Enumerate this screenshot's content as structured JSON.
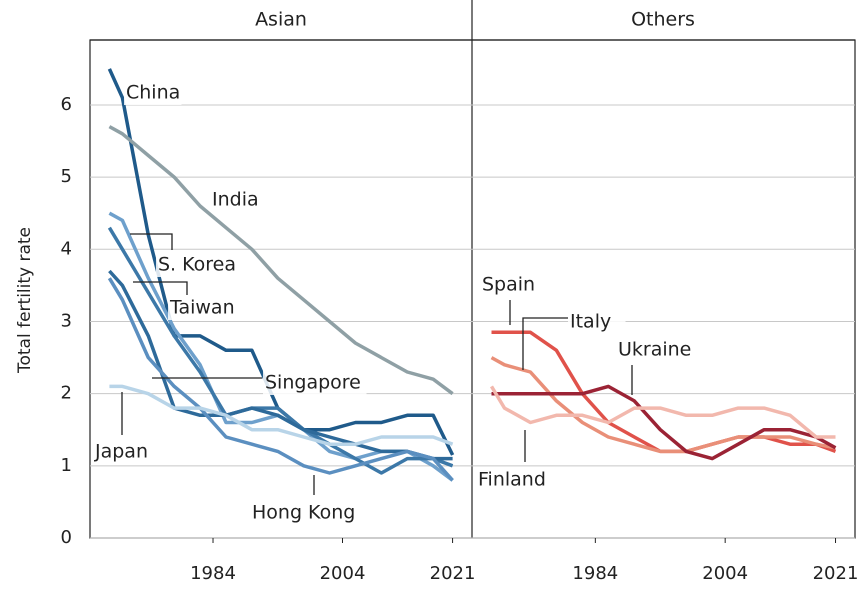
{
  "chart_data": [
    {
      "type": "line",
      "title": "Asian",
      "y_label": "Total fertility rate",
      "x": [
        1968,
        1970,
        1974,
        1978,
        1982,
        1986,
        1990,
        1994,
        1998,
        2002,
        2006,
        2010,
        2014,
        2018,
        2021
      ],
      "xlim": [
        1965,
        2024
      ],
      "ylim": [
        0,
        6.9
      ],
      "xticks": [
        1984,
        2004,
        2021
      ],
      "yticks": [
        0,
        1,
        2,
        3,
        4,
        5,
        6
      ],
      "grid": true,
      "series": [
        {
          "name": "China",
          "color": "#1f5a8a",
          "values": [
            6.5,
            6.1,
            4.2,
            2.8,
            2.8,
            2.6,
            2.6,
            1.8,
            1.5,
            1.5,
            1.6,
            1.6,
            1.7,
            1.7,
            1.15
          ]
        },
        {
          "name": "India",
          "color": "#8fa0a5",
          "values": [
            5.7,
            5.6,
            5.3,
            5.0,
            4.6,
            4.3,
            4.0,
            3.6,
            3.3,
            3.0,
            2.7,
            2.5,
            2.3,
            2.2,
            2.0
          ]
        },
        {
          "name": "S. Korea",
          "color": "#6ea0cc",
          "values": [
            4.5,
            4.4,
            3.6,
            2.9,
            2.4,
            1.6,
            1.6,
            1.7,
            1.5,
            1.2,
            1.1,
            1.2,
            1.2,
            1.0,
            0.8
          ]
        },
        {
          "name": "Taiwan",
          "color": "#3c78a8",
          "values": [
            4.3,
            4.0,
            3.4,
            2.8,
            2.3,
            1.7,
            1.8,
            1.8,
            1.5,
            1.3,
            1.1,
            0.9,
            1.1,
            1.1,
            1.0
          ]
        },
        {
          "name": "Singapore",
          "color": "#2e6a9a",
          "values": [
            3.7,
            3.5,
            2.8,
            1.8,
            1.7,
            1.7,
            1.8,
            1.7,
            1.5,
            1.4,
            1.3,
            1.2,
            1.2,
            1.1,
            1.1
          ]
        },
        {
          "name": "Hong Kong",
          "color": "#5b8fc0",
          "values": [
            3.6,
            3.3,
            2.5,
            2.1,
            1.8,
            1.4,
            1.3,
            1.2,
            1.0,
            0.9,
            1.0,
            1.1,
            1.2,
            1.1,
            0.8
          ]
        },
        {
          "name": "Japan",
          "color": "#b8d4e8",
          "values": [
            2.1,
            2.1,
            2.0,
            1.8,
            1.8,
            1.7,
            1.5,
            1.5,
            1.4,
            1.3,
            1.3,
            1.4,
            1.4,
            1.4,
            1.3
          ]
        }
      ]
    },
    {
      "type": "line",
      "title": "Others",
      "x": [
        1968,
        1970,
        1974,
        1978,
        1982,
        1986,
        1990,
        1994,
        1998,
        2002,
        2006,
        2010,
        2014,
        2018,
        2021
      ],
      "xlim": [
        1965,
        2024
      ],
      "ylim": [
        0,
        6.9
      ],
      "xticks": [
        1984,
        2004,
        2021
      ],
      "grid": true,
      "series": [
        {
          "name": "Spain",
          "color": "#e0524a",
          "values": [
            2.85,
            2.85,
            2.85,
            2.6,
            2.0,
            1.6,
            1.4,
            1.2,
            1.2,
            1.3,
            1.4,
            1.4,
            1.3,
            1.3,
            1.2
          ]
        },
        {
          "name": "Italy",
          "color": "#e98f78",
          "values": [
            2.5,
            2.4,
            2.3,
            1.9,
            1.6,
            1.4,
            1.3,
            1.2,
            1.2,
            1.3,
            1.4,
            1.4,
            1.4,
            1.3,
            1.25
          ]
        },
        {
          "name": "Ukraine",
          "color": "#9b2335",
          "values": [
            2.0,
            2.0,
            2.0,
            2.0,
            2.0,
            2.1,
            1.9,
            1.5,
            1.2,
            1.1,
            1.3,
            1.5,
            1.5,
            1.4,
            1.25
          ]
        },
        {
          "name": "Finland",
          "color": "#f2b8ad",
          "values": [
            2.1,
            1.8,
            1.6,
            1.7,
            1.7,
            1.6,
            1.8,
            1.8,
            1.7,
            1.7,
            1.8,
            1.8,
            1.7,
            1.4,
            1.4
          ]
        }
      ]
    }
  ]
}
